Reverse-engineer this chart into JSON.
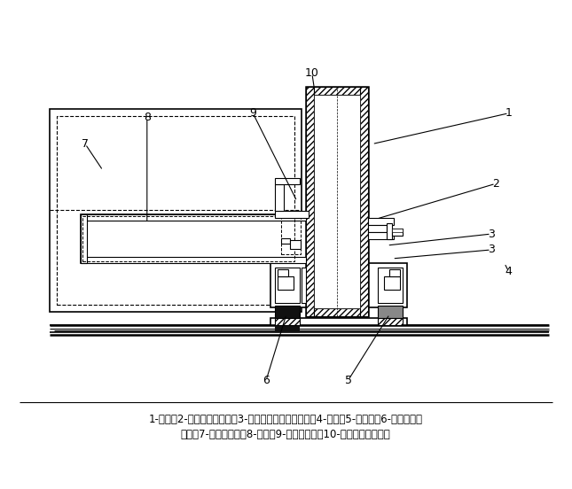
{
  "caption_line1": "1-立柱；2-聚乙烯泡沫压条；3-铝合金固定玻璃连接件；4-玻璃；5-密封胶；6-结构胶、耐",
  "caption_line2": "候胶；7-聚乙烯泡沫；8-横梁；9-螺栓、垫圈；10-横梁与立柱连接件",
  "bg_color": "#ffffff",
  "figsize": [
    6.45,
    5.52
  ],
  "dpi": 100
}
